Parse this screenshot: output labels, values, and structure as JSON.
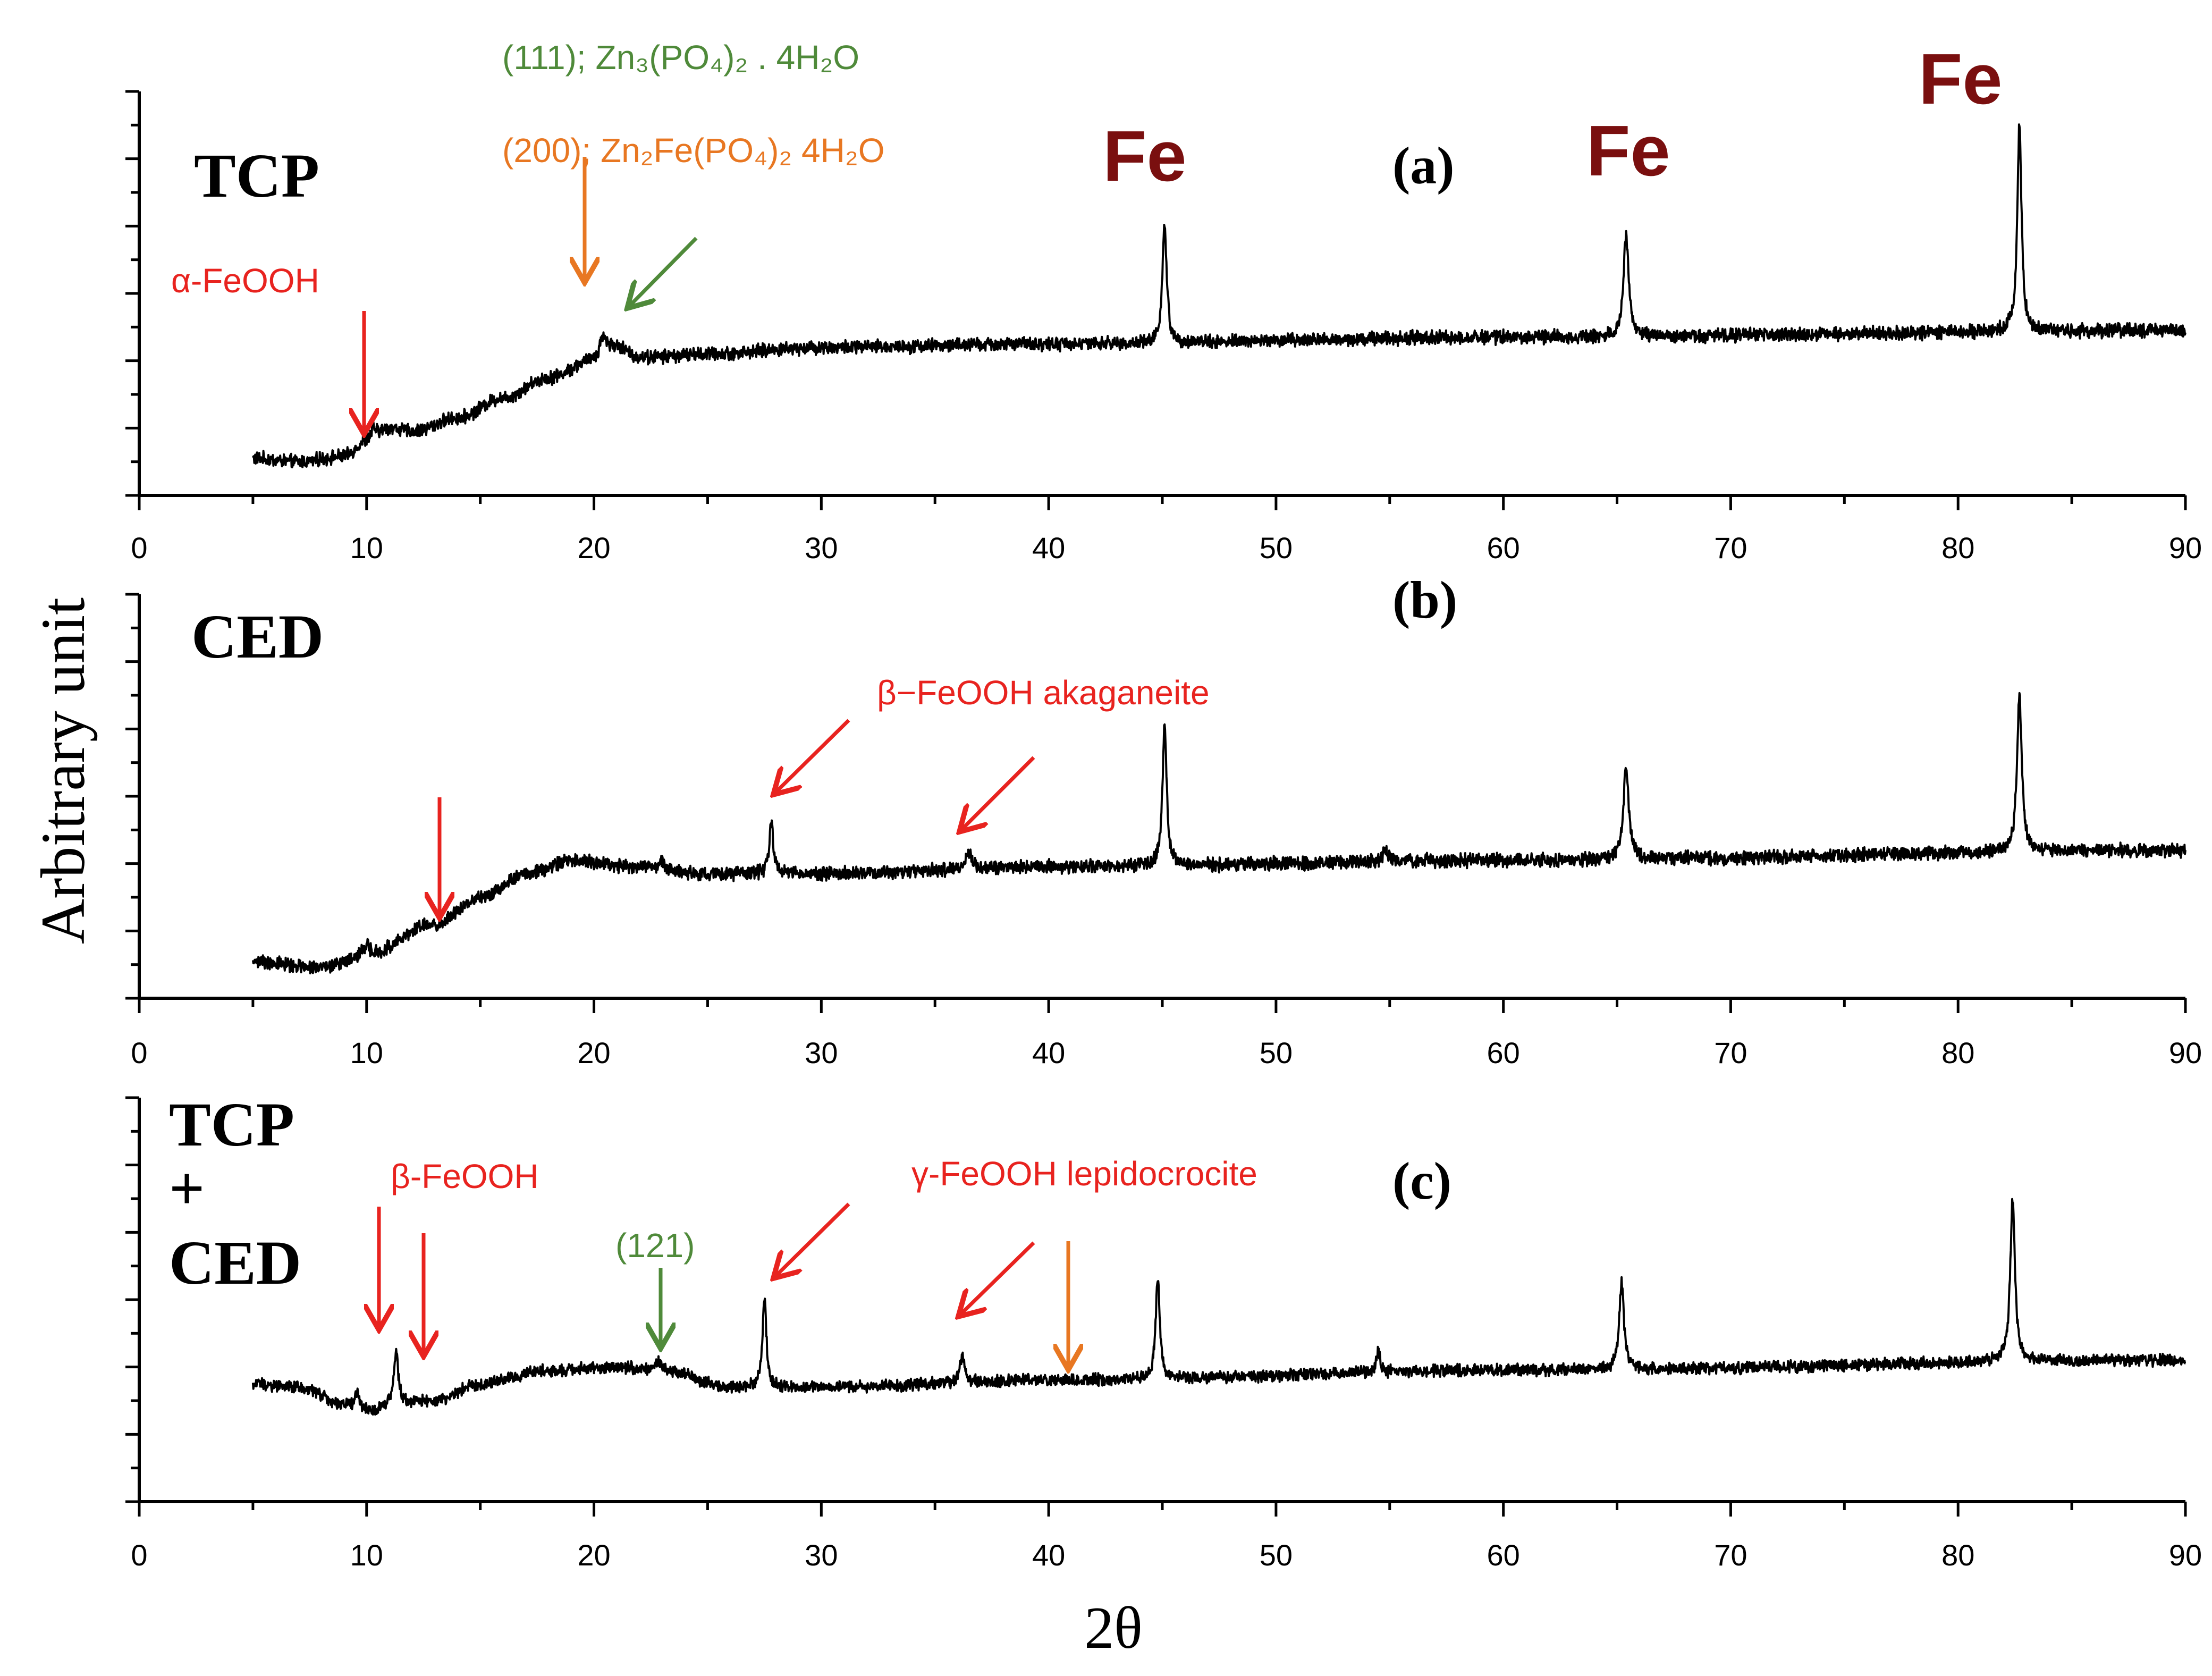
{
  "chart_data": {
    "type": "line",
    "ylabel": "Arbitrary unit",
    "xlabel": "2θ",
    "xlim": [
      0,
      90
    ],
    "x_ticks": [
      0,
      10,
      20,
      30,
      40,
      50,
      60,
      70,
      80,
      90
    ],
    "colors": {
      "trace": "#000000",
      "red": "#e8231f",
      "green": "#4f8a3a",
      "orange": "#e87722",
      "fe": "#7a0f0f"
    },
    "panels": [
      {
        "id": "a",
        "panel_label": "(a)",
        "sample": [
          "TCP"
        ],
        "ylim": [
          0,
          6
        ],
        "series": {
          "name": "TCP",
          "baseline": [
            [
              5,
              0.55
            ],
            [
              7,
              0.5
            ],
            [
              9,
              0.58
            ],
            [
              10,
              0.8
            ],
            [
              11,
              1.0
            ],
            [
              12,
              0.95
            ],
            [
              14,
              1.15
            ],
            [
              16,
              1.45
            ],
            [
              18,
              1.75
            ],
            [
              20,
              2.0
            ],
            [
              21,
              2.2
            ],
            [
              22,
              2.05
            ],
            [
              25,
              2.1
            ],
            [
              30,
              2.2
            ],
            [
              40,
              2.25
            ],
            [
              60,
              2.35
            ],
            [
              90,
              2.45
            ]
          ],
          "peaks": [
            [
              10.3,
              0.15,
              0.3
            ],
            [
              20.4,
              0.3,
              0.4
            ],
            [
              45.1,
              1.8,
              0.22
            ],
            [
              65.4,
              1.5,
              0.28
            ],
            [
              82.7,
              3.1,
              0.22
            ]
          ],
          "noise": 0.08
        },
        "annotations": [
          {
            "text": "α-FeOOH",
            "color": "red",
            "x": 10,
            "tail": 3.3,
            "head": 0.95
          },
          {
            "text": "(200); Zn₂Fe(PO₄)₂ 4H₂O",
            "color": "orange",
            "x": 19.8,
            "tail": 5.1,
            "head": 3.1
          },
          {
            "text": "(111); Zn₃(PO₄)₂ . 4H₂O",
            "color": "green",
            "x": 21.5
          }
        ],
        "fe_labels": [
          {
            "text": "Fe",
            "x": 45
          },
          {
            "text": "Fe",
            "x": 66
          },
          {
            "text": "Fe",
            "x": 82
          }
        ]
      },
      {
        "id": "b",
        "panel_label": "(b)",
        "sample": [
          "CED"
        ],
        "ylim": [
          0,
          6
        ],
        "series": {
          "name": "CED",
          "baseline": [
            [
              5,
              0.55
            ],
            [
              8,
              0.45
            ],
            [
              10,
              0.65
            ],
            [
              13,
              1.1
            ],
            [
              15,
              1.5
            ],
            [
              17,
              1.85
            ],
            [
              19,
              2.05
            ],
            [
              22,
              1.95
            ],
            [
              25,
              1.85
            ],
            [
              30,
              1.85
            ],
            [
              40,
              1.95
            ],
            [
              60,
              2.05
            ],
            [
              90,
              2.2
            ]
          ],
          "peaks": [
            [
              10.0,
              0.15,
              0.3
            ],
            [
              23.0,
              0.1,
              0.3
            ],
            [
              27.8,
              0.8,
              0.2
            ],
            [
              36.5,
              0.25,
              0.3
            ],
            [
              45.1,
              2.1,
              0.22
            ],
            [
              54.8,
              0.2,
              0.2
            ],
            [
              65.4,
              1.4,
              0.28
            ],
            [
              82.7,
              2.3,
              0.25
            ]
          ],
          "noise": 0.08
        },
        "annotations": [
          {
            "text": "β−FeOOH akaganeite",
            "color": "red",
            "x": 13.2
          },
          {
            "x": 13.2
          },
          {
            "x": 28.0
          },
          {
            "x": 36.3
          }
        ]
      },
      {
        "id": "c",
        "panel_label": "(c)",
        "sample": [
          "TCP",
          "+",
          "CED"
        ],
        "ylim": [
          0,
          6
        ],
        "series": {
          "name": "TCP + CED",
          "baseline": [
            [
              5,
              1.75
            ],
            [
              7,
              1.7
            ],
            [
              9,
              1.45
            ],
            [
              10,
              1.35
            ],
            [
              11.5,
              1.45
            ],
            [
              13,
              1.5
            ],
            [
              15,
              1.75
            ],
            [
              18,
              1.95
            ],
            [
              21,
              2.0
            ],
            [
              23,
              1.95
            ],
            [
              26,
              1.7
            ],
            [
              30,
              1.7
            ],
            [
              40,
              1.8
            ],
            [
              60,
              1.95
            ],
            [
              90,
              2.1
            ]
          ],
          "peaks": [
            [
              9.6,
              0.25,
              0.2
            ],
            [
              11.3,
              0.75,
              0.25
            ],
            [
              22.8,
              0.15,
              0.3
            ],
            [
              27.5,
              1.35,
              0.2
            ],
            [
              36.2,
              0.4,
              0.25
            ],
            [
              44.8,
              1.5,
              0.22
            ],
            [
              54.5,
              0.3,
              0.2
            ],
            [
              65.2,
              1.3,
              0.25
            ],
            [
              82.4,
              2.4,
              0.25
            ]
          ],
          "noise": 0.07
        },
        "annotations": [
          {
            "text": "β-FeOOH",
            "color": "red",
            "x": 10.7
          },
          {
            "x": 12.7
          },
          {
            "text": "(121)",
            "color": "green",
            "x": 23.0
          },
          {
            "text": "γ-FeOOH lepidocrocite",
            "color": "red",
            "x": 27.8
          },
          {
            "x": 36.0
          },
          {
            "color": "orange",
            "x": 41.2
          }
        ]
      }
    ]
  }
}
